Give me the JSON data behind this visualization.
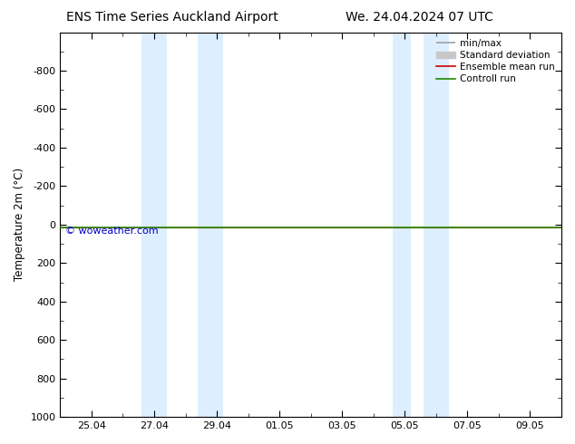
{
  "title_left": "ENS Time Series Auckland Airport",
  "title_right": "We. 24.04.2024 07 UTC",
  "ylabel": "Temperature 2m (°C)",
  "ylim_bottom": 1000,
  "ylim_top": -1000,
  "yticks": [
    -800,
    -600,
    -400,
    -200,
    0,
    200,
    400,
    600,
    800,
    1000
  ],
  "xtick_labels": [
    "25.04",
    "27.04",
    "29.04",
    "01.05",
    "03.05",
    "05.05",
    "07.05",
    "09.05"
  ],
  "shaded_bands": [
    {
      "x_start": 2.6,
      "x_end": 3.4
    },
    {
      "x_start": 4.4,
      "x_end": 5.2
    },
    {
      "x_start": 10.6,
      "x_end": 11.2
    },
    {
      "x_start": 11.6,
      "x_end": 12.4
    }
  ],
  "shade_color": "#ddeeff",
  "control_run_color": "#228800",
  "ensemble_mean_color": "#cc0000",
  "std_dev_color": "#c8c8c8",
  "minmax_color": "#a0a0a0",
  "watermark": "© woweather.com",
  "watermark_color": "#0000cc",
  "legend_labels": [
    "min/max",
    "Standard deviation",
    "Ensemble mean run",
    "Controll run"
  ],
  "legend_colors": [
    "#a0a0a0",
    "#c8c8c8",
    "#cc0000",
    "#228800"
  ],
  "background_color": "#ffffff",
  "plot_bg_color": "#ffffff",
  "xlim": [
    0,
    16
  ],
  "xtick_positions": [
    1,
    3,
    5,
    7,
    9,
    11,
    13,
    15
  ],
  "minor_xtick_positions": [
    0,
    0.5,
    1,
    1.5,
    2,
    2.5,
    3,
    3.5,
    4,
    4.5,
    5,
    5.5,
    6,
    6.5,
    7,
    7.5,
    8,
    8.5,
    9,
    9.5,
    10,
    10.5,
    11,
    11.5,
    12,
    12.5,
    13,
    13.5,
    14,
    14.5,
    15,
    15.5,
    16
  ]
}
